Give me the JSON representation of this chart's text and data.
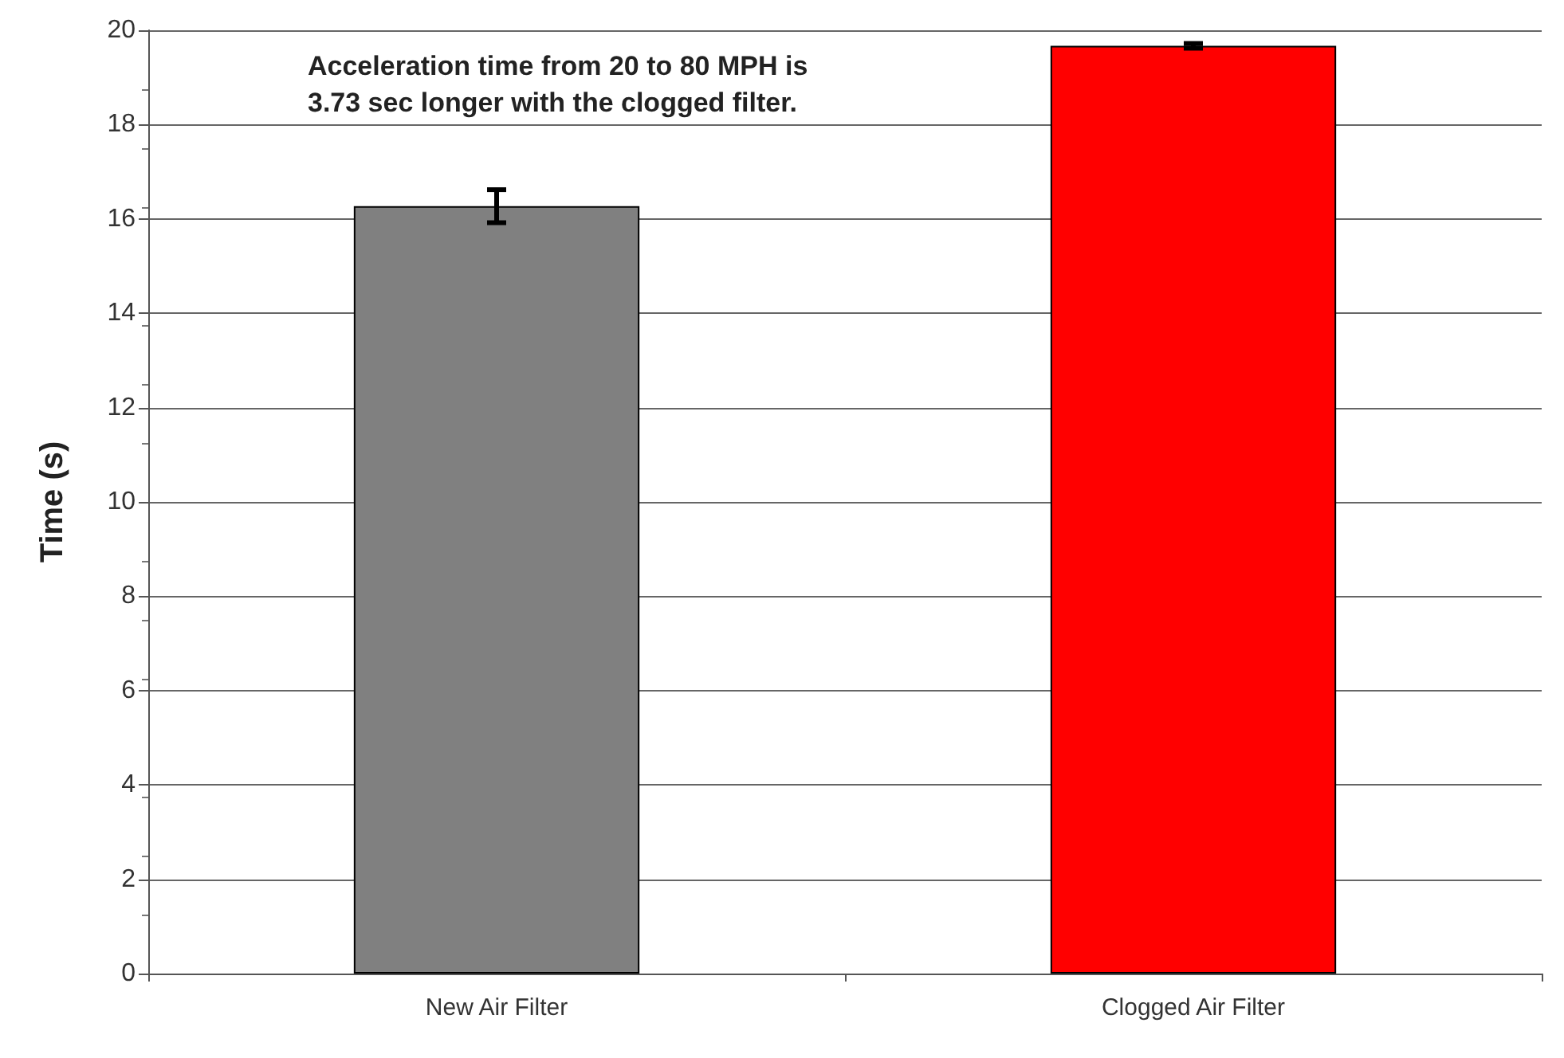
{
  "chart_data": {
    "type": "bar",
    "ylabel": "Time (s)",
    "categories": [
      "New Air Filter",
      "Clogged Air Filter"
    ],
    "values": [
      16.27,
      19.67
    ],
    "colors": [
      "#808080",
      "#ff0000"
    ],
    "errors": [
      0.35,
      0.05
    ],
    "ylim": [
      0,
      20
    ],
    "yticks": [
      0,
      2,
      4,
      6,
      8,
      10,
      12,
      14,
      16,
      18,
      20
    ],
    "grid": "y",
    "annotations": [
      "Acceleration time from 20 to 80 MPH is\n3.73 sec longer with the clogged filter."
    ]
  }
}
